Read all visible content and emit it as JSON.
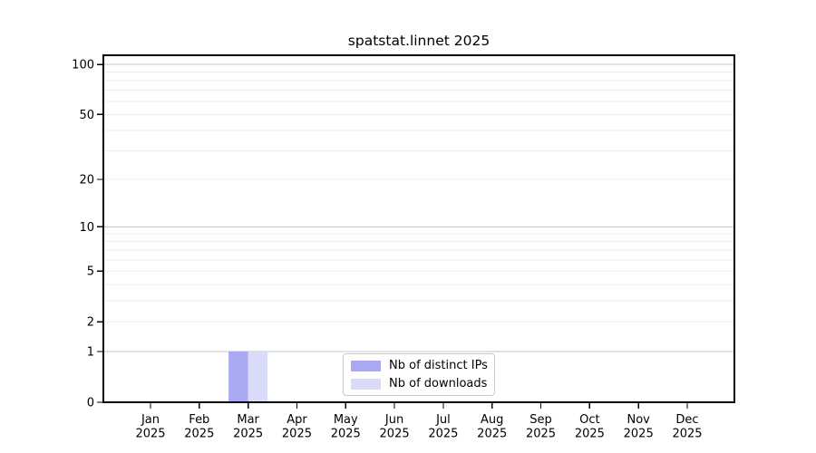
{
  "chart_data": {
    "type": "bar",
    "title": "spatstat.linnet 2025",
    "categories": [
      "Jan",
      "Feb",
      "Mar",
      "Apr",
      "May",
      "Jun",
      "Jul",
      "Aug",
      "Sep",
      "Oct",
      "Nov",
      "Dec"
    ],
    "category_year": "2025",
    "series": [
      {
        "name": "Nb of distinct IPs",
        "color": "#a8a8f3",
        "values": [
          0,
          0,
          1,
          0,
          0,
          0,
          0,
          0,
          0,
          0,
          0,
          0
        ]
      },
      {
        "name": "Nb of downloads",
        "color": "#dadaf9",
        "values": [
          0,
          0,
          1,
          0,
          0,
          0,
          0,
          0,
          0,
          0,
          0,
          0
        ]
      }
    ],
    "y_axis": {
      "scale": "log1p",
      "tick_labels": [
        0,
        1,
        2,
        5,
        10,
        20,
        50,
        100
      ],
      "major_gridlines": [
        1,
        10,
        100
      ],
      "minor_gridlines": [
        2,
        3,
        4,
        5,
        6,
        7,
        8,
        9,
        20,
        30,
        40,
        50,
        60,
        70,
        80,
        90
      ],
      "max": 113.5
    },
    "legend_position": "lower center",
    "grid": "horizontal log minor + major",
    "colors": {
      "major_grid": "#c6c6c6",
      "minor_grid": "#ededed",
      "axis": "#000000",
      "text": "#000000",
      "background": "#ffffff"
    }
  }
}
